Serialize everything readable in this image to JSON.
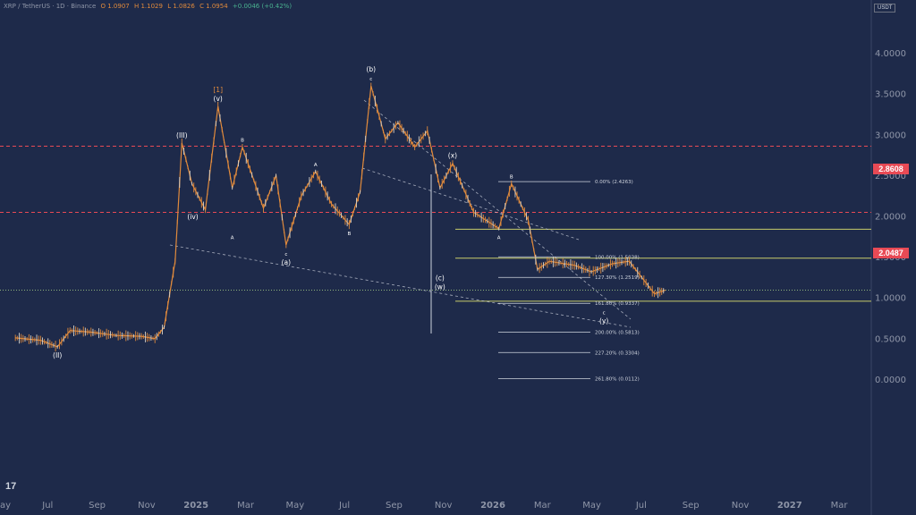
{
  "header": {
    "symbol": "XRP / TetherUS · 1D · Binance",
    "open": "O 1.0907",
    "high": "H 1.1029",
    "low": "L 1.0826",
    "close": "C 1.0954",
    "change": "+0.0046 (+0.42%)"
  },
  "currency": "USDT",
  "price_tags": [
    "2.8608",
    "2.0487"
  ],
  "colors": {
    "background": "#1e2a4a",
    "candle_up": "#d9d3c9",
    "candle_down": "#e08a3c",
    "resistance_line": "#e84a55",
    "fib_yellow": "#c8cc6a",
    "wave_label": "#ffffff",
    "degree_label": "#e08a3c"
  },
  "chart_data": {
    "type": "line",
    "title": "",
    "x_tick_labels": [
      "ay",
      "Jul",
      "Sep",
      "Nov",
      "2025",
      "Mar",
      "May",
      "Jul",
      "Sep",
      "Nov",
      "2026",
      "Mar",
      "May",
      "Jul",
      "Sep",
      "Nov",
      "2027",
      "Mar"
    ],
    "y_tick_labels": [
      "4.0000",
      "3.5000",
      "3.0000",
      "2.5000",
      "2.0000",
      "1.5000",
      "1.0000",
      "0.5000",
      "0.0000"
    ],
    "ylim": [
      -0.15,
      4.55
    ],
    "grid": false,
    "price_series": {
      "name": "",
      "points": [
        [
          "2024-05",
          0.51
        ],
        [
          "2024-06",
          0.48
        ],
        [
          "2024-07-05",
          0.4
        ],
        [
          "2024-07-20",
          0.6
        ],
        [
          "2024-08",
          0.58
        ],
        [
          "2024-09",
          0.54
        ],
        [
          "2024-10",
          0.53
        ],
        [
          "2024-11-01",
          0.5
        ],
        [
          "2024-11-12",
          0.64
        ],
        [
          "2024-11-25",
          1.45
        ],
        [
          "2024-12-03",
          2.9
        ],
        [
          "2024-12-15",
          2.4
        ],
        [
          "2024-12-31",
          2.08
        ],
        [
          "2025-01-16",
          3.35
        ],
        [
          "2025-02-03",
          2.35
        ],
        [
          "2025-02-15",
          2.85
        ],
        [
          "2025-03-10",
          2.1
        ],
        [
          "2025-03-25",
          2.5
        ],
        [
          "2025-04-07",
          1.65
        ],
        [
          "2025-04-25",
          2.25
        ],
        [
          "2025-05-12",
          2.55
        ],
        [
          "2025-05-31",
          2.15
        ],
        [
          "2025-06-22",
          1.9
        ],
        [
          "2025-07-05",
          2.3
        ],
        [
          "2025-07-18",
          3.6
        ],
        [
          "2025-08-05",
          2.95
        ],
        [
          "2025-08-20",
          3.15
        ],
        [
          "2025-09-10",
          2.85
        ],
        [
          "2025-09-25",
          3.05
        ],
        [
          "2025-10-10",
          2.35
        ],
        [
          "2025-10-25",
          2.65
        ],
        [
          "2025-11-20",
          2.05
        ],
        [
          "2025-12-20",
          1.85
        ],
        [
          "2026-01-05",
          2.4
        ],
        [
          "2026-01-25",
          1.95
        ],
        [
          "2026-02-06",
          1.35
        ],
        [
          "2026-02-20",
          1.45
        ],
        [
          "2026-03-20",
          1.4
        ],
        [
          "2026-04-10",
          1.32
        ],
        [
          "2026-05-05",
          1.42
        ],
        [
          "2026-05-25",
          1.45
        ],
        [
          "2026-06-10",
          1.25
        ],
        [
          "2026-06-25",
          1.05
        ],
        [
          "2026-07-08",
          1.095
        ]
      ]
    },
    "horizontal_levels": [
      {
        "price": 2.8608,
        "style": "dashed-red"
      },
      {
        "price": 2.0487,
        "style": "dashed-red"
      },
      {
        "price": 1.8427,
        "style": "yellow"
      },
      {
        "price": 1.4874,
        "style": "yellow"
      },
      {
        "price": 0.9597,
        "style": "yellow"
      },
      {
        "price": 1.0954,
        "style": "dotted-green"
      }
    ],
    "fibonacci": [
      {
        "label": "0.00% (2.4263)",
        "price": 2.4263
      },
      {
        "label": "100.00% (1.5038)",
        "price": 1.5038
      },
      {
        "label": "127.30% (1.2519)",
        "price": 1.2519
      },
      {
        "label": "161.80% (0.9337)",
        "price": 0.9337
      },
      {
        "label": "200.00% (0.5813)",
        "price": 0.5813
      },
      {
        "label": "227.20% (0.3304)",
        "price": 0.3304
      },
      {
        "label": "261.80% (0.0112)",
        "price": 0.0112
      }
    ],
    "wave_labels": [
      {
        "text": "(II)",
        "date": "2024-07-05",
        "price": 0.4,
        "pos": "below"
      },
      {
        "text": "(III)",
        "date": "2024-12-03",
        "price": 2.9,
        "pos": "above"
      },
      {
        "text": "(iv)",
        "date": "2024-12-16",
        "price": 2.1,
        "pos": "below"
      },
      {
        "text": "(v)",
        "date": "2025-01-16",
        "price": 3.35,
        "pos": "above"
      },
      {
        "text": "[1]",
        "date": "2025-01-16",
        "price": 3.35,
        "pos": "above2",
        "degree": true
      },
      {
        "text": "A",
        "date": "2025-02-03",
        "price": 1.85,
        "pos": "below"
      },
      {
        "text": "B",
        "date": "2025-02-15",
        "price": 2.85,
        "pos": "above"
      },
      {
        "text": "c",
        "date": "2025-04-07",
        "price": 1.65,
        "pos": "below"
      },
      {
        "text": "(a)",
        "date": "2025-04-07",
        "price": 1.65,
        "pos": "below2"
      },
      {
        "text": "A",
        "date": "2025-05-12",
        "price": 2.55,
        "pos": "above"
      },
      {
        "text": "B",
        "date": "2025-06-22",
        "price": 1.9,
        "pos": "below"
      },
      {
        "text": "c",
        "date": "2025-07-18",
        "price": 3.6,
        "pos": "above"
      },
      {
        "text": "(b)",
        "date": "2025-07-18",
        "price": 3.6,
        "pos": "above2"
      },
      {
        "text": "(x)",
        "date": "2025-10-25",
        "price": 2.65,
        "pos": "above"
      },
      {
        "text": "(c)",
        "date": "2025-10-10",
        "price": 1.35,
        "pos": "below"
      },
      {
        "text": "(w)",
        "date": "2025-10-10",
        "price": 1.35,
        "pos": "below2"
      },
      {
        "text": "B",
        "date": "2026-01-05",
        "price": 2.4,
        "pos": "above"
      },
      {
        "text": "A",
        "date": "2025-12-20",
        "price": 1.85,
        "pos": "below"
      },
      {
        "text": "c",
        "date": "2026-04-25",
        "price": 0.93,
        "pos": "below"
      },
      {
        "text": "(y)",
        "date": "2026-04-25",
        "price": 0.93,
        "pos": "below2"
      }
    ]
  }
}
